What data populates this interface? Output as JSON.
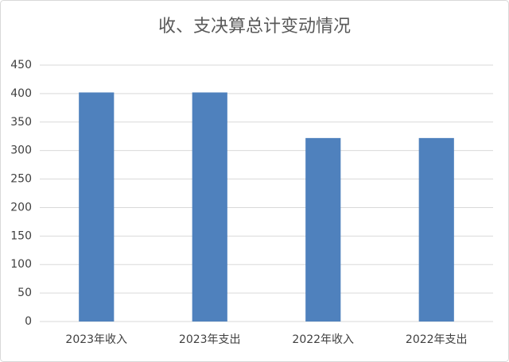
{
  "chart_data": {
    "type": "bar",
    "title": "收、支决算总计变动情况",
    "categories": [
      "2023年收入",
      "2023年支出",
      "2022年收入",
      "2022年支出"
    ],
    "values": [
      402,
      402,
      322,
      322
    ],
    "color": "#4f81bd",
    "ylim": [
      0,
      450
    ],
    "yticks": [
      0,
      50,
      100,
      150,
      200,
      250,
      300,
      350,
      400,
      450
    ],
    "grid": true
  }
}
